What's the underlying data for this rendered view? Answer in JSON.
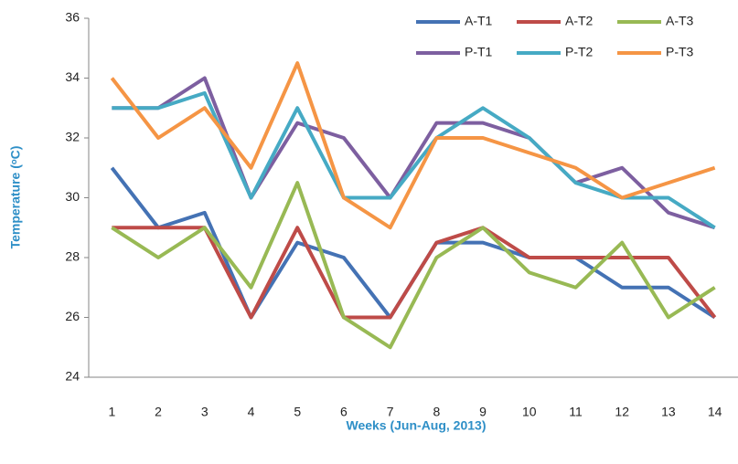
{
  "chart_data": {
    "type": "line",
    "x_label": "Weeks (Jun-Aug, 2013)",
    "y_label": "Temperature (ᵒC)",
    "categories": [
      "1",
      "2",
      "3",
      "4",
      "5",
      "6",
      "7",
      "8",
      "9",
      "10",
      "11",
      "12",
      "13",
      "14"
    ],
    "ylim": [
      24,
      36
    ],
    "yticks": [
      24,
      26,
      28,
      30,
      32,
      34,
      36
    ],
    "grid": false,
    "legend": "top-right",
    "series": [
      {
        "name": "A-T1",
        "color": "#4472b4",
        "values": [
          31,
          29,
          29.5,
          26,
          28.5,
          28,
          26,
          28.5,
          28.5,
          28,
          28,
          27,
          27,
          26
        ]
      },
      {
        "name": "A-T2",
        "color": "#be4b48",
        "values": [
          29,
          29,
          29,
          26,
          29,
          26,
          26,
          28.5,
          29,
          28,
          28,
          28,
          28,
          26
        ]
      },
      {
        "name": "A-T3",
        "color": "#98b954",
        "values": [
          29,
          28,
          29,
          27,
          30.5,
          26,
          25,
          28,
          29,
          27.5,
          27,
          28.5,
          26,
          27
        ]
      },
      {
        "name": "P-T1",
        "color": "#7d5fa0",
        "values": [
          33,
          33,
          34,
          30,
          32.5,
          32,
          30,
          32.5,
          32.5,
          32,
          30.5,
          31,
          29.5,
          29
        ]
      },
      {
        "name": "P-T2",
        "color": "#46aac4",
        "values": [
          33,
          33,
          33.5,
          30,
          33,
          30,
          30,
          32,
          33,
          32,
          30.5,
          30,
          30,
          29
        ]
      },
      {
        "name": "P-T3",
        "color": "#f59545",
        "values": [
          34,
          32,
          33,
          31,
          34.5,
          30,
          29,
          32,
          32,
          31.5,
          31,
          30,
          30.5,
          31
        ]
      }
    ]
  }
}
